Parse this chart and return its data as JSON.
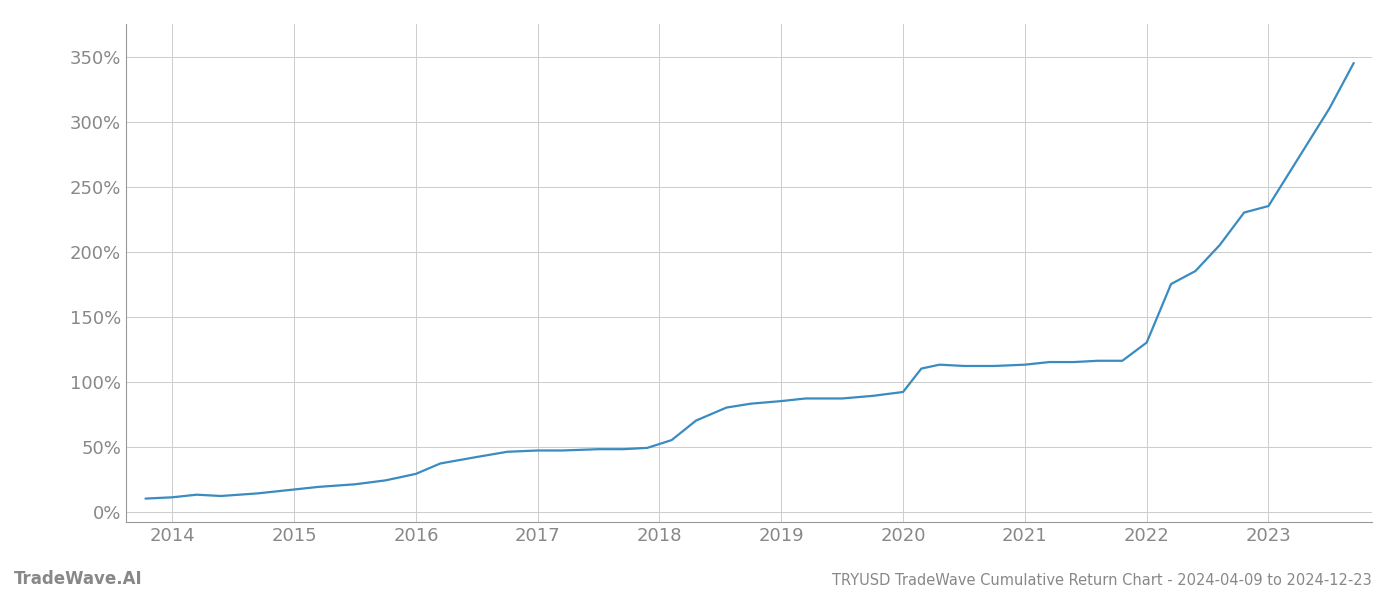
{
  "title": "TRYUSD TradeWave Cumulative Return Chart - 2024-04-09 to 2024-12-23",
  "watermark": "TradeWave.AI",
  "line_color": "#3a8bbf",
  "background_color": "#ffffff",
  "grid_color": "#cccccc",
  "x_years": [
    2014,
    2015,
    2016,
    2017,
    2018,
    2019,
    2020,
    2021,
    2022,
    2023
  ],
  "y_ticks": [
    0,
    50,
    100,
    150,
    200,
    250,
    300,
    350
  ],
  "xlim": [
    2013.62,
    2023.85
  ],
  "ylim": [
    -8,
    375
  ],
  "data_x": [
    2013.78,
    2014.0,
    2014.2,
    2014.4,
    2014.7,
    2015.0,
    2015.2,
    2015.5,
    2015.75,
    2016.0,
    2016.2,
    2016.5,
    2016.75,
    2017.0,
    2017.2,
    2017.5,
    2017.7,
    2017.9,
    2018.1,
    2018.3,
    2018.55,
    2018.75,
    2019.0,
    2019.2,
    2019.5,
    2019.75,
    2020.0,
    2020.15,
    2020.3,
    2020.5,
    2020.75,
    2021.0,
    2021.1,
    2021.2,
    2021.4,
    2021.6,
    2021.8,
    2022.0,
    2022.2,
    2022.4,
    2022.6,
    2022.8,
    2023.0,
    2023.2,
    2023.5,
    2023.7
  ],
  "data_y": [
    10,
    11,
    13,
    12,
    14,
    17,
    19,
    21,
    24,
    29,
    37,
    42,
    46,
    47,
    47,
    48,
    48,
    49,
    55,
    70,
    80,
    83,
    85,
    87,
    87,
    89,
    92,
    110,
    113,
    112,
    112,
    113,
    114,
    115,
    115,
    116,
    116,
    130,
    175,
    185,
    205,
    230,
    235,
    265,
    310,
    345
  ],
  "title_color": "#888888",
  "tick_color": "#888888",
  "title_fontsize": 10.5,
  "tick_fontsize": 13,
  "watermark_fontsize": 12,
  "line_width": 1.6,
  "spine_color": "#999999"
}
